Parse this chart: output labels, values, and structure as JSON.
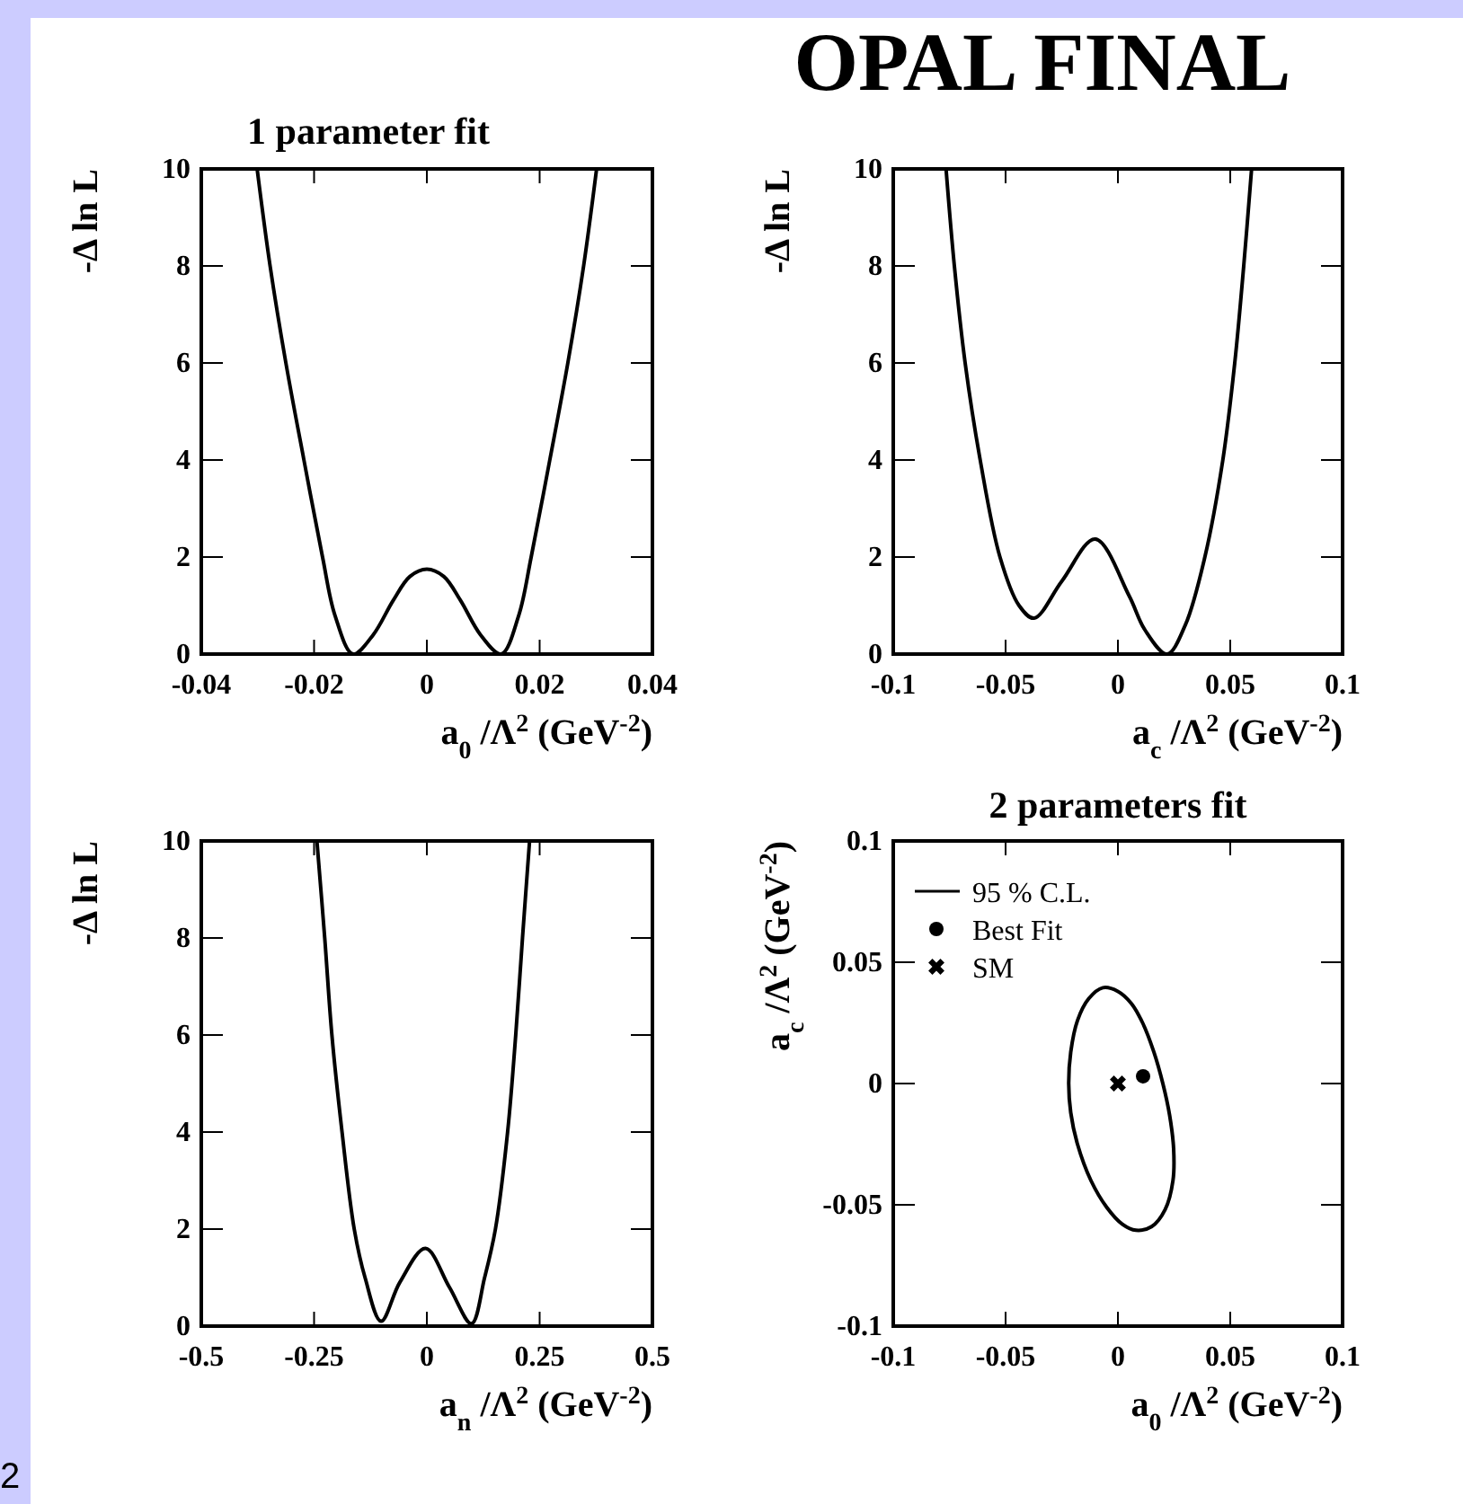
{
  "chart_data": [
    {
      "type": "line",
      "title": "1 parameter fit",
      "xlabel": "a$_{0}$ /Λ$^{2}$ (GeV$^{-2}$)",
      "ylabel": "-Δ ln L",
      "xlim": [
        -0.04,
        0.04
      ],
      "ylim": [
        0,
        10
      ],
      "xticks": [
        -0.04,
        -0.02,
        0,
        0.02,
        0.04
      ],
      "yticks": [
        0,
        2,
        4,
        6,
        8,
        10
      ],
      "series": [
        {
          "color": "#000000",
          "x": [
            -0.0301,
            -0.0278,
            -0.025,
            -0.0218,
            -0.0185,
            -0.0163,
            -0.0131,
            -0.0095,
            -0.006,
            -0.003,
            0,
            0.003,
            0.006,
            0.0095,
            0.0132,
            0.0163,
            0.0185,
            0.0218,
            0.025,
            0.0278,
            0.0301
          ],
          "values": [
            10,
            8,
            6,
            4,
            2,
            0.8,
            0,
            0.4,
            1.1,
            1.6,
            1.75,
            1.6,
            1.1,
            0.4,
            0,
            0.8,
            2,
            4,
            6,
            8,
            10
          ]
        }
      ]
    },
    {
      "type": "line",
      "title": "OPAL FINAL",
      "xlabel": "a$_{c}$ /Λ$^{2}$ (GeV$^{-2}$)",
      "ylabel": "-Δ ln L",
      "xlim": [
        -0.1,
        0.1
      ],
      "ylim": [
        0,
        10
      ],
      "xticks": [
        -0.1,
        -0.05,
        0,
        0.05,
        0.1
      ],
      "yticks": [
        0,
        2,
        4,
        6,
        8,
        10
      ],
      "series": [
        {
          "color": "#000000",
          "x": [
            -0.0765,
            -0.0728,
            -0.068,
            -0.0613,
            -0.0525,
            -0.044,
            -0.0373,
            -0.025,
            -0.0101,
            0.005,
            0.012,
            0.0219,
            0.03,
            0.0387,
            0.0467,
            0.052,
            0.056,
            0.0595
          ],
          "values": [
            10,
            8,
            6,
            4,
            2,
            1,
            0.74,
            1.5,
            2.37,
            1.2,
            0.5,
            0,
            0.6,
            2,
            4,
            6,
            8,
            10
          ]
        }
      ]
    },
    {
      "type": "line",
      "xlabel": "a$_{n}$ /Λ$^{2}$ (GeV$^{-2}$)",
      "ylabel": "-Δ ln L",
      "xlim": [
        -0.5,
        0.5
      ],
      "ylim": [
        0,
        10
      ],
      "xticks": [
        -0.5,
        -0.25,
        0,
        0.25,
        0.5
      ],
      "yticks": [
        0,
        2,
        4,
        6,
        8,
        10
      ],
      "annotations": [
        "2"
      ],
      "series": [
        {
          "color": "#000000",
          "x": [
            -0.2437,
            -0.2264,
            -0.2105,
            -0.188,
            -0.161,
            -0.137,
            -0.1016,
            -0.06,
            -0.003,
            0.05,
            0.099,
            0.128,
            0.152,
            0.179,
            0.197,
            0.212,
            0.2277
          ],
          "values": [
            10,
            8,
            6,
            4,
            2,
            1,
            0.1,
            0.9,
            1.6,
            0.8,
            0.05,
            1,
            2,
            4,
            6,
            8,
            10
          ]
        }
      ]
    },
    {
      "type": "scatter",
      "title": "2 parameters  fit",
      "xlabel": "a$_{0}$ /Λ$^{2}$ (GeV$^{-2}$)",
      "ylabel": "a$_{c}$ /Λ$^{2}$ (GeV$^{-2}$)",
      "xlim": [
        -0.1,
        0.1
      ],
      "ylim": [
        -0.1,
        0.1
      ],
      "xticks": [
        -0.1,
        -0.05,
        0,
        0.05,
        0.1
      ],
      "yticks": [
        -0.1,
        -0.05,
        0,
        0.05,
        0.1
      ],
      "legend": "top left",
      "annotations": [
        "95 % C.L."
      ],
      "series": [
        {
          "name": "Best Fit",
          "marker": "circle",
          "color": "#000000",
          "x": [
            0.0112
          ],
          "values": [
            0.003
          ]
        },
        {
          "name": "SM",
          "marker": "cross",
          "color": "#000000",
          "x": [
            0
          ],
          "values": [
            0
          ]
        }
      ]
    }
  ]
}
